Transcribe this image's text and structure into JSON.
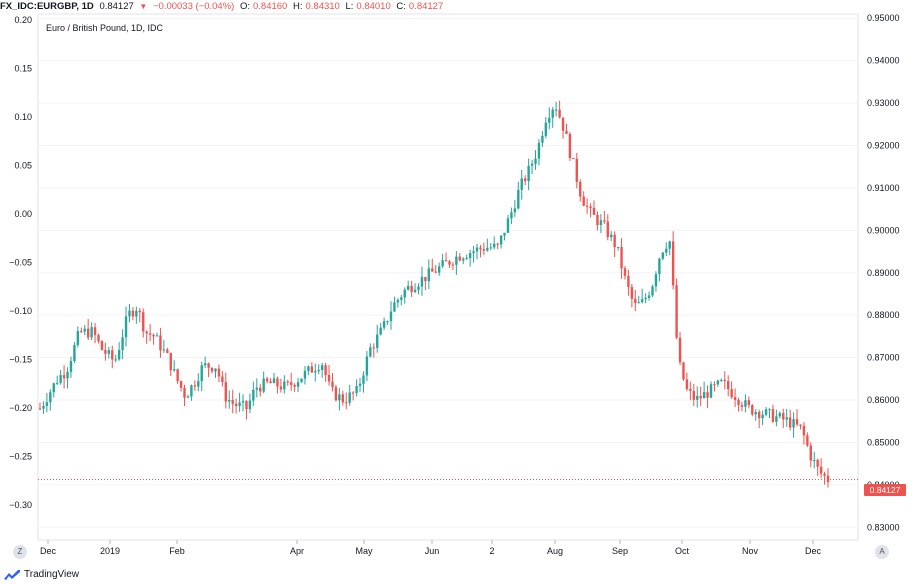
{
  "header": {
    "symbol": "FX_IDC:EURGBP, 1D",
    "last": "0.84127",
    "change": "−0.00033 (−0.04%)",
    "o_label": "O:",
    "o": "0.84160",
    "h_label": "H:",
    "h": "0.84310",
    "l_label": "L:",
    "l": "0.84010",
    "c_label": "C:",
    "c": "0.84127"
  },
  "chart_data": {
    "type": "candlestick",
    "title": "",
    "subtitle": "Euro / British Pound, 1D, IDC",
    "left_axis": {
      "ticks": [
        "0.20",
        "0.15",
        "0.10",
        "0.05",
        "0.00",
        "−0.05",
        "−0.10",
        "−0.15",
        "−0.20",
        "−0.25",
        "−0.30"
      ],
      "range": [
        -0.32,
        0.2
      ]
    },
    "right_axis": {
      "ticks": [
        "0.95000",
        "0.94000",
        "0.93000",
        "0.92000",
        "0.91000",
        "0.90000",
        "0.89000",
        "0.88000",
        "0.87000",
        "0.86000",
        "0.85000",
        "0.84000",
        "0.83000"
      ],
      "range": [
        0.827,
        0.951
      ]
    },
    "x_ticks": [
      "Dec",
      "2019",
      "Feb",
      "Apr",
      "May",
      "Jun",
      "2",
      "Aug",
      "Sep",
      "Oct",
      "Nov",
      "Dec"
    ],
    "last_price_label": "0.84127",
    "last_price": 0.84127,
    "colors": {
      "up": "#26a69a",
      "down": "#ef5350",
      "grid": "#f0f3fa"
    },
    "close_path": [
      [
        0.0,
        0.858
      ],
      [
        0.02,
        0.865
      ],
      [
        0.03,
        0.867
      ],
      [
        0.045,
        0.876
      ],
      [
        0.06,
        0.876
      ],
      [
        0.07,
        0.872
      ],
      [
        0.085,
        0.869
      ],
      [
        0.1,
        0.88
      ],
      [
        0.11,
        0.882
      ],
      [
        0.12,
        0.876
      ],
      [
        0.13,
        0.875
      ],
      [
        0.145,
        0.87
      ],
      [
        0.155,
        0.865
      ],
      [
        0.165,
        0.861
      ],
      [
        0.175,
        0.864
      ],
      [
        0.185,
        0.868
      ],
      [
        0.2,
        0.868
      ],
      [
        0.21,
        0.861
      ],
      [
        0.22,
        0.859
      ],
      [
        0.235,
        0.858
      ],
      [
        0.245,
        0.863
      ],
      [
        0.26,
        0.864
      ],
      [
        0.28,
        0.863
      ],
      [
        0.3,
        0.866
      ],
      [
        0.32,
        0.869
      ],
      [
        0.33,
        0.862
      ],
      [
        0.345,
        0.86
      ],
      [
        0.36,
        0.862
      ],
      [
        0.375,
        0.872
      ],
      [
        0.39,
        0.877
      ],
      [
        0.4,
        0.882
      ],
      [
        0.415,
        0.886
      ],
      [
        0.43,
        0.888
      ],
      [
        0.445,
        0.89
      ],
      [
        0.46,
        0.892
      ],
      [
        0.475,
        0.894
      ],
      [
        0.49,
        0.895
      ],
      [
        0.505,
        0.896
      ],
      [
        0.52,
        0.896
      ],
      [
        0.535,
        0.904
      ],
      [
        0.545,
        0.91
      ],
      [
        0.555,
        0.914
      ],
      [
        0.565,
        0.919
      ],
      [
        0.575,
        0.927
      ],
      [
        0.585,
        0.93
      ],
      [
        0.595,
        0.924
      ],
      [
        0.605,
        0.916
      ],
      [
        0.615,
        0.908
      ],
      [
        0.625,
        0.904
      ],
      [
        0.64,
        0.901
      ],
      [
        0.655,
        0.896
      ],
      [
        0.665,
        0.888
      ],
      [
        0.675,
        0.882
      ],
      [
        0.685,
        0.883
      ],
      [
        0.695,
        0.887
      ],
      [
        0.705,
        0.895
      ],
      [
        0.715,
        0.898
      ],
      [
        0.725,
        0.869
      ],
      [
        0.735,
        0.862
      ],
      [
        0.745,
        0.86
      ],
      [
        0.76,
        0.862
      ],
      [
        0.775,
        0.864
      ],
      [
        0.79,
        0.861
      ],
      [
        0.805,
        0.858
      ],
      [
        0.82,
        0.857
      ],
      [
        0.835,
        0.856
      ],
      [
        0.85,
        0.855
      ],
      [
        0.865,
        0.853
      ],
      [
        0.875,
        0.847
      ],
      [
        0.885,
        0.843
      ],
      [
        0.895,
        0.8413
      ]
    ]
  }
}
